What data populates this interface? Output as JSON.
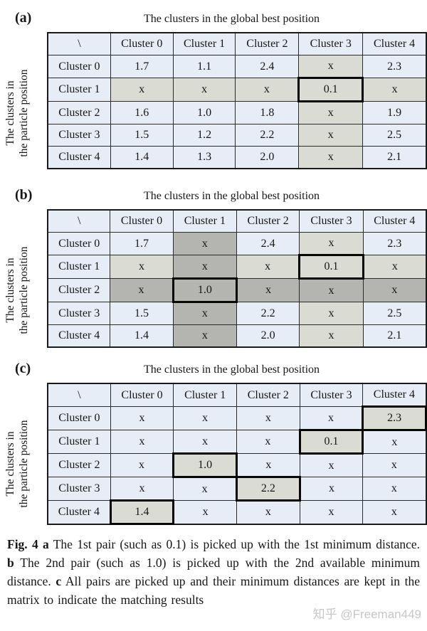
{
  "page": {
    "background": "#ffffff"
  },
  "colors": {
    "cell_blue": "#e7edf6",
    "cell_gray": "#dadbd2",
    "cell_dark": "#b4b5b0",
    "thick_border": "#060606",
    "watermark_color": "#c6c6c6"
  },
  "panels": [
    {
      "label": "(a)",
      "title": "The clusters in the global best position",
      "side_label": [
        "The clusters in",
        "the particle position"
      ],
      "header": [
        "\\",
        "Cluster 0",
        "Cluster 1",
        "Cluster 2",
        "Cluster 3",
        "Cluster 4"
      ],
      "rows": [
        {
          "label": "Cluster 0",
          "cells": [
            {
              "v": "1.7",
              "s": "n"
            },
            {
              "v": "1.1",
              "s": "n"
            },
            {
              "v": "2.4",
              "s": "n"
            },
            {
              "v": "x",
              "s": "g"
            },
            {
              "v": "2.3",
              "s": "n"
            }
          ]
        },
        {
          "label": "Cluster 1",
          "cells": [
            {
              "v": "x",
              "s": "g"
            },
            {
              "v": "x",
              "s": "g"
            },
            {
              "v": "x",
              "s": "g"
            },
            {
              "v": "0.1",
              "s": "g",
              "picked": true
            },
            {
              "v": "x",
              "s": "g"
            }
          ]
        },
        {
          "label": "Cluster 2",
          "cells": [
            {
              "v": "1.6",
              "s": "n"
            },
            {
              "v": "1.0",
              "s": "n"
            },
            {
              "v": "1.8",
              "s": "n"
            },
            {
              "v": "x",
              "s": "g"
            },
            {
              "v": "1.9",
              "s": "n"
            }
          ]
        },
        {
          "label": "Cluster 3",
          "cells": [
            {
              "v": "1.5",
              "s": "n"
            },
            {
              "v": "1.2",
              "s": "n"
            },
            {
              "v": "2.2",
              "s": "n"
            },
            {
              "v": "x",
              "s": "g"
            },
            {
              "v": "2.5",
              "s": "n"
            }
          ]
        },
        {
          "label": "Cluster 4",
          "cells": [
            {
              "v": "1.4",
              "s": "n"
            },
            {
              "v": "1.3",
              "s": "n"
            },
            {
              "v": "2.0",
              "s": "n"
            },
            {
              "v": "x",
              "s": "g"
            },
            {
              "v": "2.1",
              "s": "n"
            }
          ]
        }
      ]
    },
    {
      "label": "(b)",
      "title": "The clusters in the global best position",
      "side_label": [
        "The clusters in",
        "the particle position"
      ],
      "header": [
        "\\",
        "Cluster 0",
        "Cluster 1",
        "Cluster 2",
        "Cluster 3",
        "Cluster 4"
      ],
      "rows": [
        {
          "label": "Cluster 0",
          "cells": [
            {
              "v": "1.7",
              "s": "n"
            },
            {
              "v": "x",
              "s": "d"
            },
            {
              "v": "2.4",
              "s": "n"
            },
            {
              "v": "x",
              "s": "g"
            },
            {
              "v": "2.3",
              "s": "n"
            }
          ]
        },
        {
          "label": "Cluster 1",
          "cells": [
            {
              "v": "x",
              "s": "g"
            },
            {
              "v": "x",
              "s": "d"
            },
            {
              "v": "x",
              "s": "g"
            },
            {
              "v": "0.1",
              "s": "g",
              "picked": true
            },
            {
              "v": "x",
              "s": "g"
            }
          ]
        },
        {
          "label": "Cluster 2",
          "cells": [
            {
              "v": "x",
              "s": "d"
            },
            {
              "v": "1.0",
              "s": "d",
              "picked": true
            },
            {
              "v": "x",
              "s": "d"
            },
            {
              "v": "x",
              "s": "d"
            },
            {
              "v": "x",
              "s": "d"
            }
          ]
        },
        {
          "label": "Cluster 3",
          "cells": [
            {
              "v": "1.5",
              "s": "n"
            },
            {
              "v": "x",
              "s": "d"
            },
            {
              "v": "2.2",
              "s": "n"
            },
            {
              "v": "x",
              "s": "g"
            },
            {
              "v": "2.5",
              "s": "n"
            }
          ]
        },
        {
          "label": "Cluster 4",
          "cells": [
            {
              "v": "1.4",
              "s": "n"
            },
            {
              "v": "x",
              "s": "d"
            },
            {
              "v": "2.0",
              "s": "n"
            },
            {
              "v": "x",
              "s": "g"
            },
            {
              "v": "2.1",
              "s": "n"
            }
          ]
        }
      ]
    },
    {
      "label": "(c)",
      "title": "The clusters in the global best position",
      "side_label": [
        "The clusters in",
        "the particle position"
      ],
      "header": [
        "\\",
        "Cluster 0",
        "Cluster 1",
        "Cluster 2",
        "Cluster 3",
        "Cluster 4"
      ],
      "rows": [
        {
          "label": "Cluster 0",
          "cells": [
            {
              "v": "x",
              "s": "n"
            },
            {
              "v": "x",
              "s": "n"
            },
            {
              "v": "x",
              "s": "n"
            },
            {
              "v": "x",
              "s": "n"
            },
            {
              "v": "2.3",
              "s": "g",
              "picked": true
            }
          ]
        },
        {
          "label": "Cluster 1",
          "cells": [
            {
              "v": "x",
              "s": "n"
            },
            {
              "v": "x",
              "s": "n"
            },
            {
              "v": "x",
              "s": "n"
            },
            {
              "v": "0.1",
              "s": "g",
              "picked": true
            },
            {
              "v": "x",
              "s": "n"
            }
          ]
        },
        {
          "label": "Cluster 2",
          "cells": [
            {
              "v": "x",
              "s": "n"
            },
            {
              "v": "1.0",
              "s": "g",
              "picked": true
            },
            {
              "v": "x",
              "s": "n"
            },
            {
              "v": "x",
              "s": "n"
            },
            {
              "v": "x",
              "s": "n"
            }
          ]
        },
        {
          "label": "Cluster 3",
          "cells": [
            {
              "v": "x",
              "s": "n"
            },
            {
              "v": "x",
              "s": "n"
            },
            {
              "v": "2.2",
              "s": "g",
              "picked": true
            },
            {
              "v": "x",
              "s": "n"
            },
            {
              "v": "x",
              "s": "n"
            }
          ]
        },
        {
          "label": "Cluster 4",
          "cells": [
            {
              "v": "1.4",
              "s": "g",
              "picked": true
            },
            {
              "v": "x",
              "s": "n"
            },
            {
              "v": "x",
              "s": "n"
            },
            {
              "v": "x",
              "s": "n"
            },
            {
              "v": "x",
              "s": "n"
            }
          ]
        }
      ]
    }
  ],
  "caption": {
    "segments": [
      {
        "text": "Fig. 4",
        "bold": true
      },
      {
        "text": "  ",
        "bold": false
      },
      {
        "text": "a",
        "bold": true
      },
      {
        "text": " The 1st pair (such as 0.1) is picked up with the 1st minimum distance. ",
        "bold": false
      },
      {
        "text": "b",
        "bold": true
      },
      {
        "text": " The 2nd pair (such as 1.0) is picked up with the 2nd available minimum distance. ",
        "bold": false
      },
      {
        "text": "c",
        "bold": true
      },
      {
        "text": " All pairs are picked up and their minimum distances are kept in the matrix to indicate the matching results",
        "bold": false
      }
    ]
  },
  "watermark": "知乎 @Freeman449"
}
